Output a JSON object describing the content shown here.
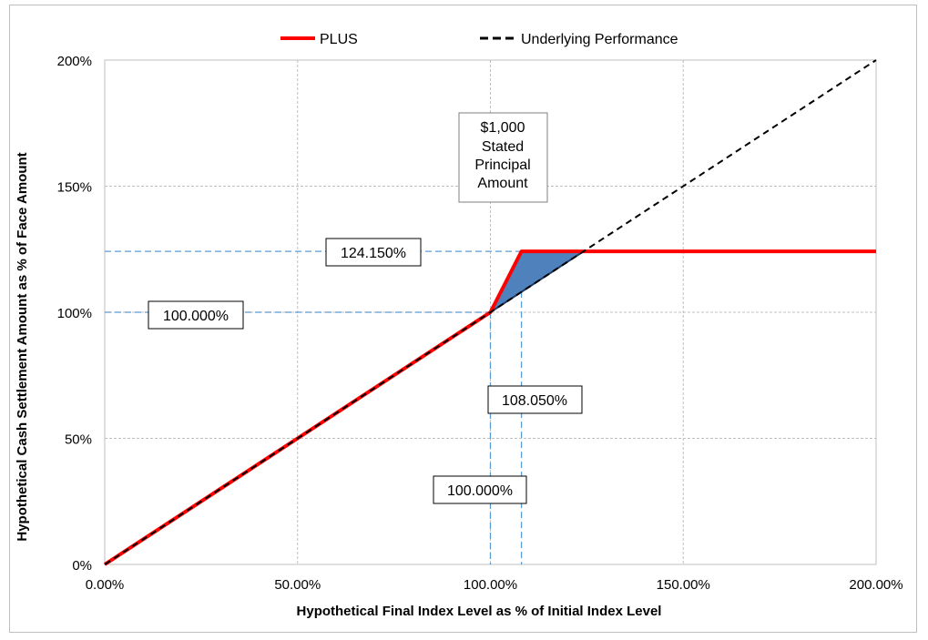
{
  "chart_data": {
    "type": "line",
    "title": "",
    "xlabel": "Hypothetical Final Index Level as % of Initial Index Level",
    "ylabel": "Hypothetical Cash Settlement Amount as % of Face Amount",
    "xlim": [
      0,
      200
    ],
    "ylim": [
      0,
      200
    ],
    "x_ticks": [
      0,
      50,
      100,
      150,
      200
    ],
    "y_ticks": [
      0,
      50,
      100,
      150,
      200
    ],
    "x_tick_labels": [
      "0.00%",
      "50.00%",
      "100.00%",
      "150.00%",
      "200.00%"
    ],
    "y_tick_labels": [
      "0%",
      "50%",
      "100%",
      "150%",
      "200%"
    ],
    "grid": true,
    "legend_position": "top-center",
    "series": [
      {
        "name": "PLUS",
        "color": "#ff0000",
        "style": "solid",
        "x": [
          0,
          100,
          108.05,
          200
        ],
        "y": [
          0,
          100,
          124.15,
          124.15
        ]
      },
      {
        "name": "Underlying Performance",
        "color": "#000000",
        "style": "dashed",
        "x": [
          0,
          200
        ],
        "y": [
          0,
          200
        ]
      }
    ],
    "shaded_region": {
      "fill": "#4f81bd",
      "x": [
        100,
        108.05,
        124.15
      ],
      "y": [
        100,
        124.15,
        124.15
      ]
    },
    "reference_lines": {
      "color": "#5b9bd5",
      "horizontal": [
        {
          "y": 124.15,
          "x_end": 108.05
        },
        {
          "y": 100,
          "x_end": 100
        }
      ],
      "vertical": [
        {
          "x": 100,
          "y_end": 100
        },
        {
          "x": 108.05,
          "y_end": 124.15
        }
      ]
    },
    "annotations": {
      "cap_label": "124.150%",
      "y_threshold_label": "100.000%",
      "cap_x_label": "108.050%",
      "x_threshold_label": "100.000%",
      "principal_lines": [
        "$1,000",
        "Stated",
        "Principal",
        "Amount"
      ]
    }
  }
}
